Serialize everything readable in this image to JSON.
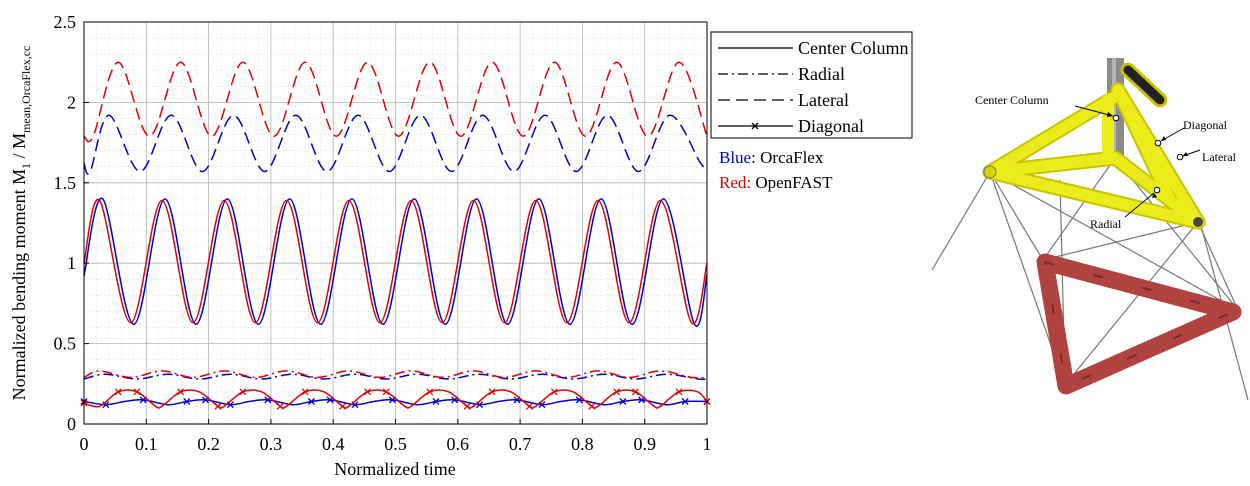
{
  "chart_data": {
    "type": "line",
    "xlabel": "Normalized time",
    "ylabel": {
      "main": "Normalized bending moment M",
      "sub1": "1",
      "middle": " / M",
      "sub2": "mean,OrcaFlex,cc"
    },
    "xlim": [
      0,
      1
    ],
    "ylim": [
      0,
      2.5
    ],
    "x_ticks": [
      "0",
      "0.1",
      "0.2",
      "0.3",
      "0.4",
      "0.5",
      "0.6",
      "0.7",
      "0.8",
      "0.9",
      "1"
    ],
    "y_ticks": [
      "0",
      "0.5",
      "1",
      "1.5",
      "2",
      "2.5"
    ],
    "grid": true,
    "minor_grid": true,
    "period": 0.1,
    "legend": {
      "position": "outside-right",
      "entries": [
        {
          "label": "Center Column",
          "style": "solid"
        },
        {
          "label": "Radial",
          "style": "dash-dot"
        },
        {
          "label": "Lateral",
          "style": "dashed"
        },
        {
          "label": "Diagonal",
          "style": "solid-x"
        }
      ]
    },
    "color_note": [
      {
        "prefix": "Blue:",
        "text": " OrcaFlex",
        "color": "#0000cc"
      },
      {
        "prefix": "Red:",
        "text": " OpenFAST",
        "color": "#e00000"
      }
    ],
    "series": [
      {
        "member": "Center Column",
        "source": "OrcaFlex",
        "color": "#0000cc",
        "style": "solid",
        "x": [
          0,
          0.03,
          0.08,
          0.13,
          0.18,
          0.23,
          0.28,
          0.33,
          0.38,
          0.43,
          0.48,
          0.53,
          0.58,
          0.63,
          0.68,
          0.73,
          0.78,
          0.83,
          0.88,
          0.93,
          0.98,
          1.0
        ],
        "y": [
          0.92,
          1.4,
          0.62,
          1.4,
          0.62,
          1.4,
          0.62,
          1.4,
          0.62,
          1.4,
          0.62,
          1.4,
          0.62,
          1.4,
          0.62,
          1.4,
          0.62,
          1.4,
          0.62,
          1.4,
          0.62,
          0.93
        ]
      },
      {
        "member": "Center Column",
        "source": "OpenFAST",
        "color": "#e00000",
        "style": "solid",
        "x": [
          0,
          0.025,
          0.075,
          0.125,
          0.175,
          0.225,
          0.275,
          0.325,
          0.375,
          0.425,
          0.475,
          0.525,
          0.575,
          0.625,
          0.675,
          0.725,
          0.775,
          0.825,
          0.875,
          0.925,
          0.975,
          1.0
        ],
        "y": [
          1.0,
          1.39,
          0.63,
          1.39,
          0.63,
          1.39,
          0.63,
          1.39,
          0.63,
          1.39,
          0.63,
          1.39,
          0.63,
          1.39,
          0.63,
          1.39,
          0.63,
          1.39,
          0.63,
          1.39,
          0.63,
          1.0
        ]
      },
      {
        "member": "Radial",
        "source": "OrcaFlex",
        "color": "#0000cc",
        "style": "dash-dot",
        "x": [
          0,
          0.035,
          0.085,
          0.135,
          0.185,
          0.235,
          0.285,
          0.335,
          0.385,
          0.435,
          0.485,
          0.535,
          0.585,
          0.635,
          0.685,
          0.735,
          0.785,
          0.835,
          0.885,
          0.935,
          0.985,
          1.0
        ],
        "y": [
          0.28,
          0.31,
          0.28,
          0.31,
          0.28,
          0.31,
          0.28,
          0.31,
          0.28,
          0.31,
          0.28,
          0.31,
          0.28,
          0.31,
          0.28,
          0.31,
          0.28,
          0.31,
          0.28,
          0.31,
          0.28,
          0.28
        ]
      },
      {
        "member": "Radial",
        "source": "OpenFAST",
        "color": "#e00000",
        "style": "dash-dot",
        "x": [
          0,
          0.025,
          0.075,
          0.125,
          0.175,
          0.225,
          0.275,
          0.325,
          0.375,
          0.425,
          0.475,
          0.525,
          0.575,
          0.625,
          0.675,
          0.725,
          0.775,
          0.825,
          0.875,
          0.925,
          0.975,
          1.0
        ],
        "y": [
          0.29,
          0.33,
          0.29,
          0.33,
          0.29,
          0.33,
          0.29,
          0.33,
          0.29,
          0.33,
          0.29,
          0.33,
          0.29,
          0.33,
          0.29,
          0.33,
          0.29,
          0.33,
          0.29,
          0.33,
          0.29,
          0.29
        ]
      },
      {
        "member": "Lateral",
        "source": "OrcaFlex",
        "color": "#0000cc",
        "style": "dashed",
        "x": [
          0,
          0.01,
          0.04,
          0.09,
          0.14,
          0.19,
          0.24,
          0.29,
          0.34,
          0.39,
          0.44,
          0.49,
          0.54,
          0.59,
          0.64,
          0.69,
          0.74,
          0.79,
          0.84,
          0.89,
          0.94,
          0.99,
          1.0
        ],
        "y": [
          1.62,
          1.57,
          1.92,
          1.57,
          1.92,
          1.57,
          1.92,
          1.57,
          1.92,
          1.57,
          1.92,
          1.57,
          1.92,
          1.57,
          1.92,
          1.57,
          1.92,
          1.57,
          1.92,
          1.57,
          1.92,
          1.62,
          1.6
        ]
      },
      {
        "member": "Lateral",
        "source": "OpenFAST",
        "color": "#e00000",
        "style": "dashed",
        "x": [
          0,
          0.015,
          0.055,
          0.105,
          0.155,
          0.205,
          0.255,
          0.305,
          0.355,
          0.405,
          0.455,
          0.505,
          0.555,
          0.605,
          0.655,
          0.705,
          0.755,
          0.805,
          0.855,
          0.905,
          0.955,
          1.0
        ],
        "y": [
          1.79,
          1.79,
          2.25,
          1.79,
          2.25,
          1.79,
          2.25,
          1.79,
          2.25,
          1.79,
          2.25,
          1.79,
          2.25,
          1.79,
          2.25,
          1.79,
          2.25,
          1.79,
          2.25,
          1.79,
          2.25,
          1.79
        ]
      },
      {
        "member": "Diagonal",
        "source": "OrcaFlex",
        "color": "#0000cc",
        "style": "solid-x",
        "x": [
          0,
          0.035,
          0.065,
          0.095,
          0.135,
          0.165,
          0.195,
          0.235,
          0.265,
          0.295,
          0.335,
          0.365,
          0.395,
          0.435,
          0.465,
          0.495,
          0.535,
          0.565,
          0.595,
          0.635,
          0.665,
          0.695,
          0.735,
          0.765,
          0.795,
          0.835,
          0.865,
          0.895,
          0.935,
          0.965,
          1.0
        ],
        "y": [
          0.14,
          0.12,
          0.14,
          0.15,
          0.12,
          0.14,
          0.15,
          0.12,
          0.14,
          0.15,
          0.12,
          0.14,
          0.15,
          0.12,
          0.14,
          0.15,
          0.12,
          0.14,
          0.15,
          0.12,
          0.14,
          0.15,
          0.12,
          0.14,
          0.15,
          0.12,
          0.14,
          0.15,
          0.12,
          0.14,
          0.14
        ]
      },
      {
        "member": "Diagonal",
        "source": "OpenFAST",
        "color": "#e00000",
        "style": "solid-x",
        "x": [
          0,
          0.025,
          0.055,
          0.085,
          0.115,
          0.125,
          0.155,
          0.185,
          0.215,
          0.225,
          0.255,
          0.285,
          0.315,
          0.325,
          0.355,
          0.385,
          0.415,
          0.425,
          0.455,
          0.485,
          0.515,
          0.525,
          0.555,
          0.585,
          0.615,
          0.625,
          0.655,
          0.685,
          0.715,
          0.725,
          0.755,
          0.785,
          0.815,
          0.825,
          0.855,
          0.885,
          0.915,
          0.925,
          0.955,
          0.985,
          1.0
        ],
        "y": [
          0.13,
          0.11,
          0.2,
          0.2,
          0.11,
          0.11,
          0.2,
          0.2,
          0.11,
          0.11,
          0.2,
          0.2,
          0.11,
          0.11,
          0.2,
          0.2,
          0.11,
          0.11,
          0.2,
          0.2,
          0.11,
          0.11,
          0.2,
          0.2,
          0.11,
          0.11,
          0.2,
          0.2,
          0.11,
          0.11,
          0.2,
          0.2,
          0.11,
          0.11,
          0.2,
          0.2,
          0.11,
          0.11,
          0.2,
          0.2,
          0.14
        ]
      }
    ]
  },
  "schematic": {
    "labels": {
      "center_column": "Center Column",
      "diagonal": "Diagonal",
      "lateral": "Lateral",
      "radial": "Radial"
    },
    "colors": {
      "members": "#ecec1c",
      "members_dark": "#c8c400",
      "heave_plate": "#b0433f",
      "lines": "#777777",
      "tower": "#8a8a8a"
    }
  }
}
